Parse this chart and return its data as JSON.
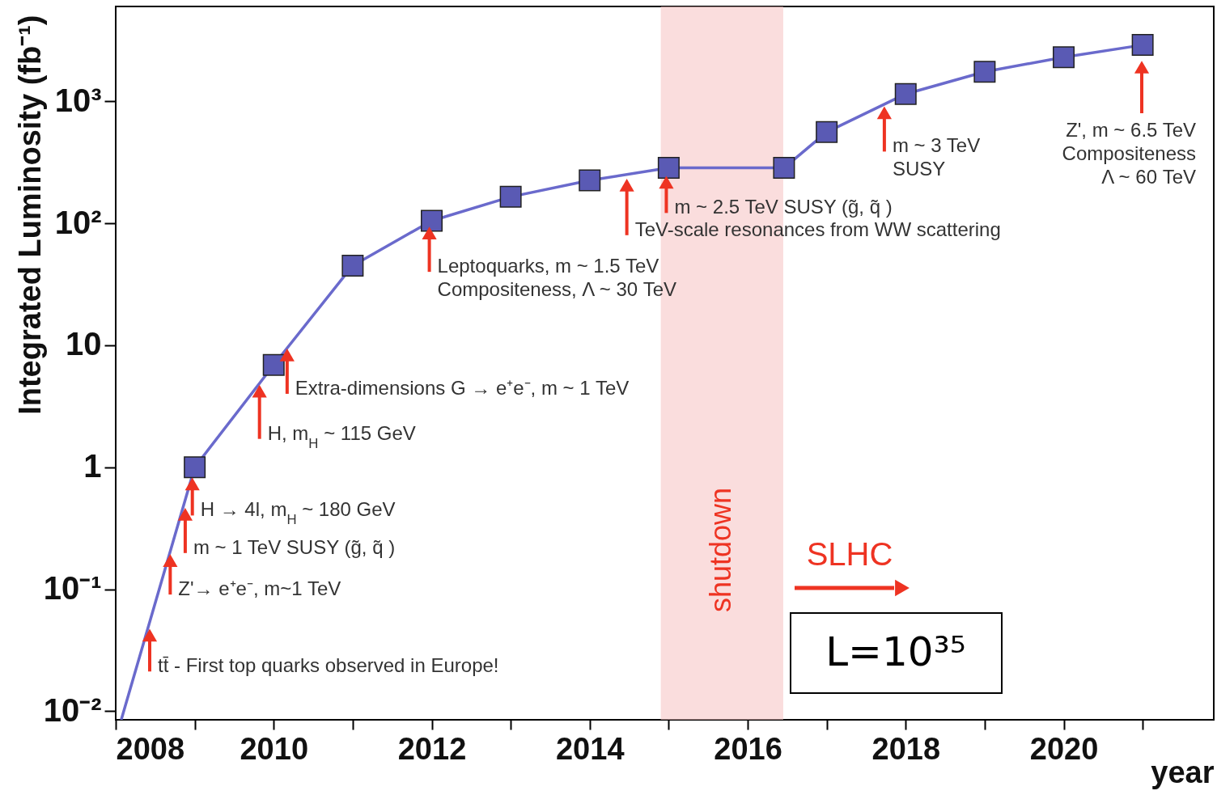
{
  "chart_data": {
    "type": "line",
    "xlabel": "year",
    "ylabel": "Integrated Luminosity (fb⁻¹)",
    "log": "y",
    "grid": false,
    "xlim": [
      2008,
      2021.9
    ],
    "xticks": [
      2008,
      {
        "value": 2009,
        "label": null
      },
      2010,
      {
        "value": 2011,
        "label": null
      },
      2012,
      {
        "value": 2013,
        "label": null
      },
      2014,
      {
        "value": 2015,
        "label": null
      },
      2016,
      {
        "value": 2017,
        "label": null
      },
      2018,
      {
        "value": 2019,
        "label": null
      },
      2020,
      {
        "value": 2021,
        "label": null
      }
    ],
    "ylim": [
      0.0085,
      6000
    ],
    "yticks": [
      {
        "value": 0.01,
        "label": "10⁻²"
      },
      {
        "value": 0.1,
        "label": "10⁻¹"
      },
      1,
      10,
      {
        "value": 100,
        "label": "10²"
      },
      {
        "value": 1000,
        "label": "10³"
      }
    ],
    "series": [
      {
        "marker": "none",
        "color": "#6a6acc",
        "x": [
          2008.07,
          2009,
          2010,
          2011,
          2012,
          2013,
          2014,
          2015,
          2016.46,
          2017,
          2018,
          2019,
          2020,
          2021
        ],
        "values": [
          0.0085,
          1,
          6.9,
          45,
          105,
          165,
          225,
          285,
          285,
          560,
          1150,
          1750,
          2300,
          2900
        ]
      },
      {
        "type": "scatter",
        "marker": "square",
        "color": "#5a5ab4",
        "x": [
          2009,
          2010,
          2011,
          2012,
          2013,
          2014,
          2015,
          2016.46,
          2017,
          2018,
          2019,
          2020,
          2021
        ],
        "values": [
          1,
          6.9,
          45,
          105,
          165,
          225,
          285,
          285,
          560,
          1150,
          1750,
          2300,
          2900
        ]
      }
    ],
    "bands": [
      {
        "axis": "x",
        "from": 2014.9,
        "to": 2016.45,
        "label": "shutdown",
        "color": "#f7c6c6"
      }
    ],
    "annotations": [
      {
        "text": "tt̄ - First top quarks observed in Europe!",
        "x": 2008.43,
        "y": 0.049
      },
      {
        "text": "Z'→ e⁺e⁻, m~1 TeV",
        "x": 2008.69,
        "y": 0.2
      },
      {
        "text": "m ~ 1 TeV SUSY (g̃, q̃ )",
        "x": 2008.88,
        "y": 0.48
      },
      {
        "text": "H → 4l, m$_{H}$ ~ 180 GeV",
        "x": 2008.97,
        "y": 0.85
      },
      {
        "text": "H, m$_{H}$ ~ 115 GeV",
        "x": 2009.82,
        "y": 4.9
      },
      {
        "text": "Extra-dimensions G → e⁺e⁻, m ~ 1 TeV",
        "x": 2010.17,
        "y": 9.7
      },
      {
        "text": "Leptoquarks, m ~ 1.5 TeV\nCompositeness, Λ ~ 30 TeV",
        "x": 2011.97,
        "y": 97
      },
      {
        "text": "TeV-scale resonances from WW scattering",
        "x": 2014.47,
        "y": 240
      },
      {
        "text": "m ~ 2.5 TeV SUSY (g̃, q̃ )",
        "x": 2014.97,
        "y": 253
      },
      {
        "text": "m ~ 3 TeV\nSUSY",
        "x": 2017.73,
        "y": 940
      },
      "Z', m ~ 6.5 TeV\nCompositeness\nΛ ~ 60 TeV",
      "SLHC",
      "L=10³⁵"
    ]
  }
}
